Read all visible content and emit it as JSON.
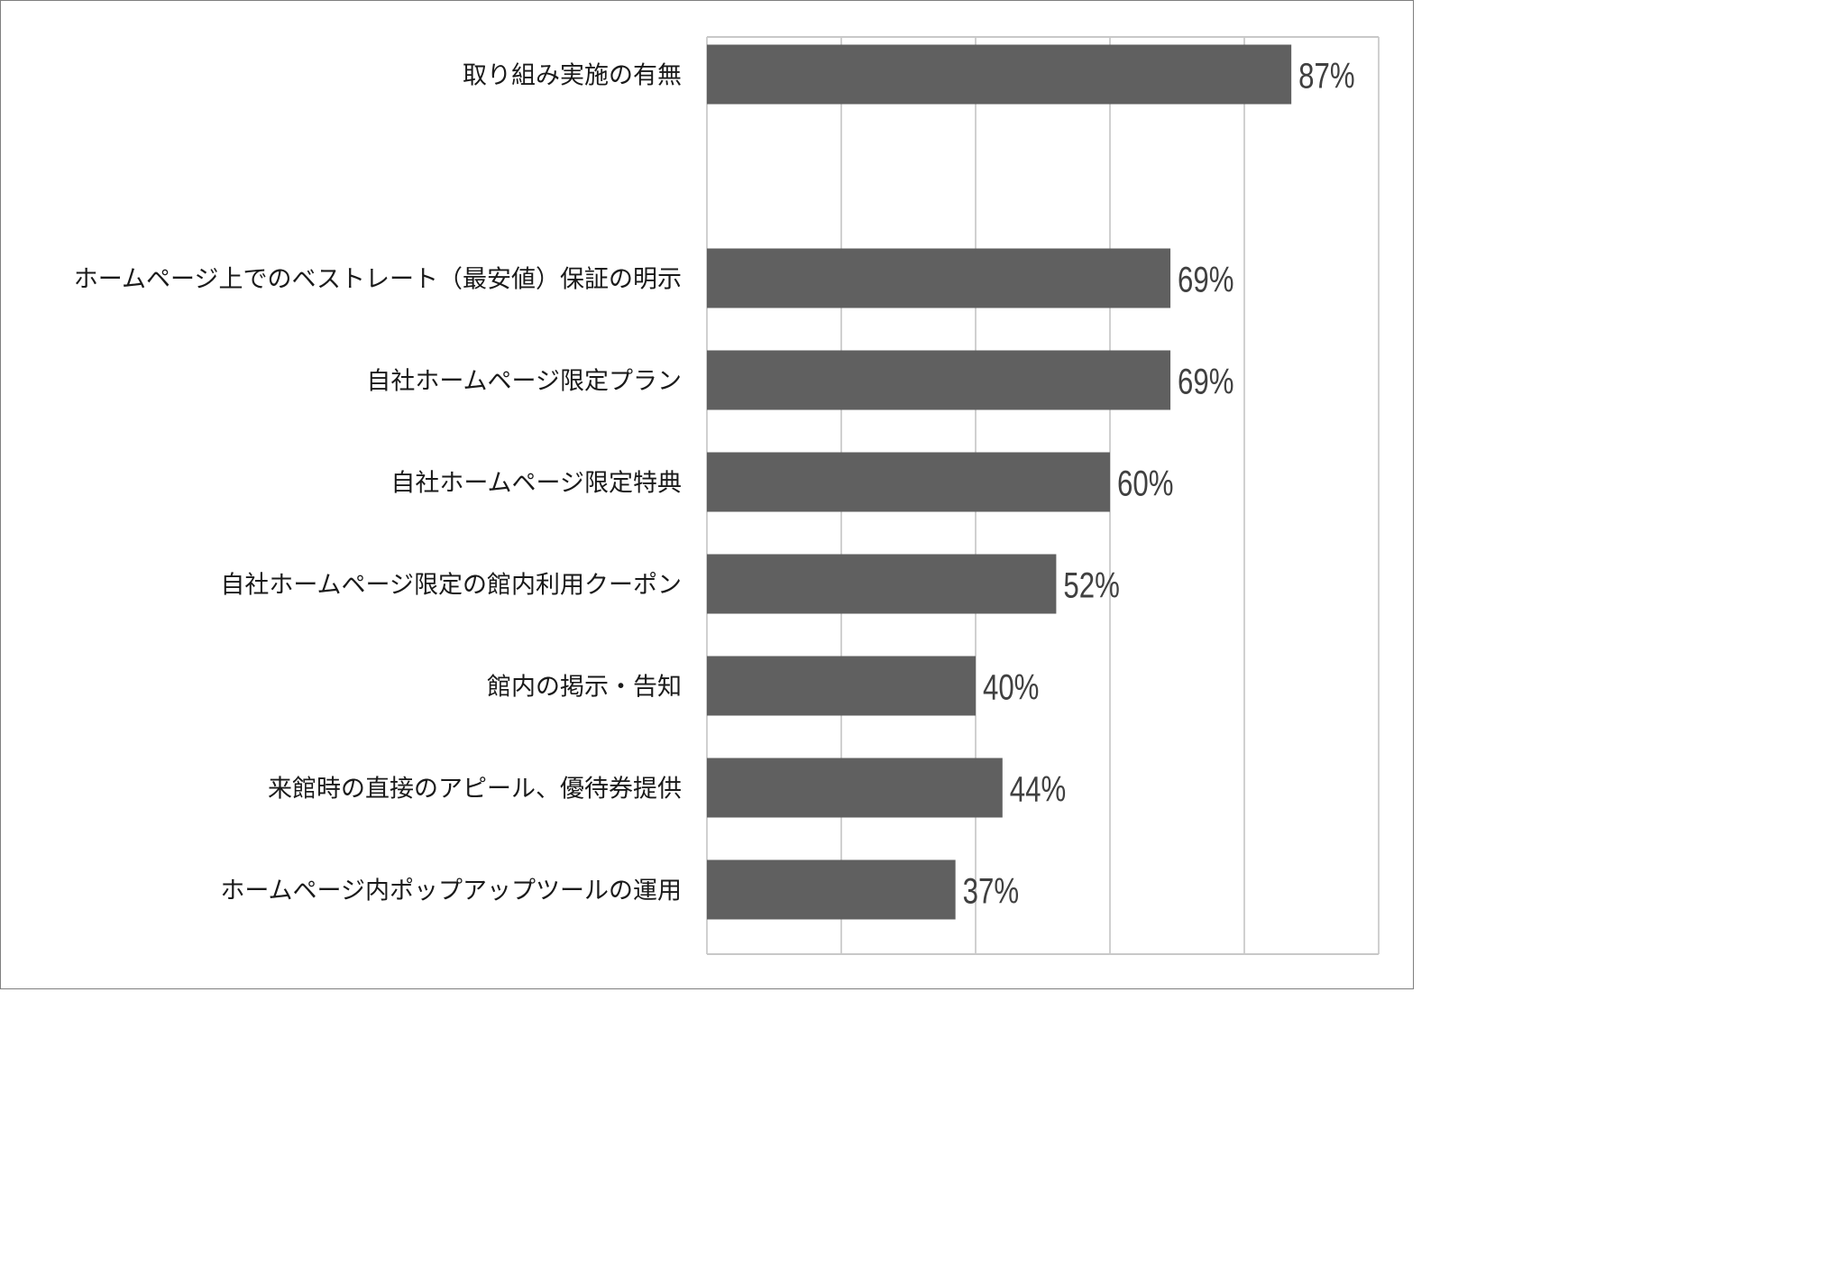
{
  "chart_data": {
    "type": "bar",
    "orientation": "horizontal",
    "categories": [
      "取り組み実施の有無",
      "",
      "ホームページ上でのベストレート（最安値）保証の明示",
      "自社ホームページ限定プラン",
      "自社ホームページ限定特典",
      "自社ホームページ限定の館内利用クーポン",
      "館内の掲示・告知",
      "来館時の直接のアピール、優待券提供",
      "ホームページ内ポップアップツールの運用"
    ],
    "values": [
      87,
      null,
      69,
      69,
      60,
      52,
      40,
      44,
      37
    ],
    "value_labels": [
      "87%",
      "",
      "69%",
      "69%",
      "60%",
      "52%",
      "40%",
      "44%",
      "37%"
    ],
    "xlim": [
      0,
      100
    ],
    "x_gridlines": [
      0,
      20,
      40,
      60,
      80,
      100
    ],
    "grid": true,
    "legend": "none",
    "title": "",
    "xlabel": "",
    "ylabel": ""
  },
  "colors": {
    "bar": "#606060",
    "grid": "#d0d0d0",
    "axis": "#c8c8c8",
    "frame": "#7f7f7f"
  }
}
